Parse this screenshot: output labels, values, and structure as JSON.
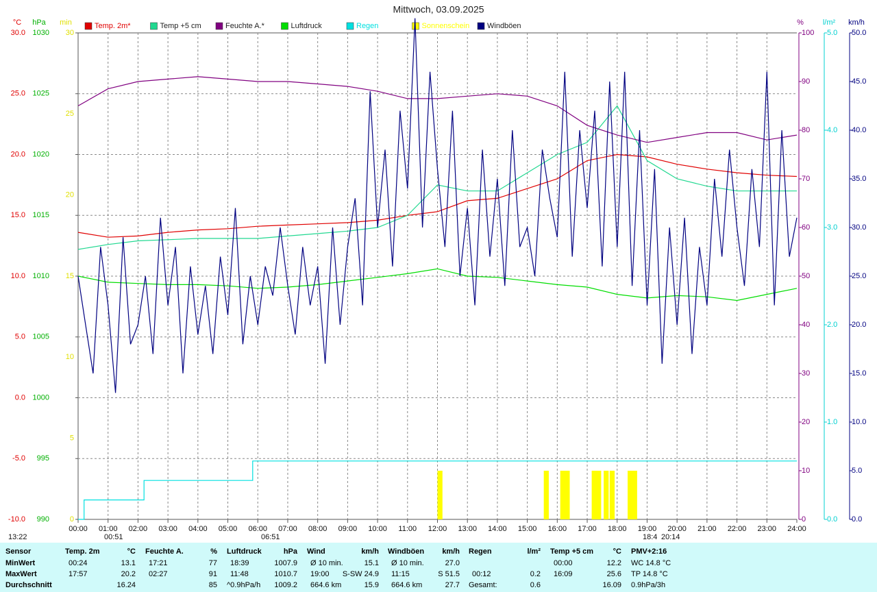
{
  "chart_data": {
    "type": "line",
    "title": "Mittwoch, 03.09.2025",
    "xlim": [
      0,
      24
    ],
    "xticks": [
      {
        "value": 0,
        "label": "00:00"
      },
      {
        "value": 1,
        "label": "01:00"
      },
      {
        "value": 2,
        "label": "02:00"
      },
      {
        "value": 3,
        "label": "03:00"
      },
      {
        "value": 4,
        "label": "04:00"
      },
      {
        "value": 5,
        "label": "05:00"
      },
      {
        "value": 6,
        "label": "06:00"
      },
      {
        "value": 7,
        "label": "07:00"
      },
      {
        "value": 8,
        "label": "08:00"
      },
      {
        "value": 9,
        "label": "09:00"
      },
      {
        "value": 10,
        "label": "10:00"
      },
      {
        "value": 11,
        "label": "11:00"
      },
      {
        "value": 12,
        "label": "12:00"
      },
      {
        "value": 13,
        "label": "13:00"
      },
      {
        "value": 14,
        "label": "14:00"
      },
      {
        "value": 15,
        "label": "15:00"
      },
      {
        "value": 16,
        "label": "16:00"
      },
      {
        "value": 17,
        "label": "17:00"
      },
      {
        "value": 18,
        "label": "18:00"
      },
      {
        "value": 19,
        "label": "19:00"
      },
      {
        "value": 20,
        "label": "20:00"
      },
      {
        "value": 21,
        "label": "21:00"
      },
      {
        "value": 22,
        "label": "22:00"
      },
      {
        "value": 23,
        "label": "23:00"
      },
      {
        "value": 24,
        "label": "24:00"
      }
    ],
    "grid": true,
    "x": [
      0,
      1,
      2,
      3,
      4,
      5,
      6,
      7,
      8,
      9,
      10,
      11,
      12,
      13,
      14,
      15,
      16,
      17,
      18,
      19,
      20,
      21,
      22,
      23,
      24
    ],
    "y_axes": {
      "y": {
        "label": "°C",
        "color": "#e00000",
        "lim": [
          -10,
          30
        ],
        "ticks": [
          {
            "value": 30,
            "label": "30.0"
          },
          {
            "value": 25,
            "label": "25.0"
          },
          {
            "value": 20,
            "label": "20.0"
          },
          {
            "value": 15,
            "label": "15.0"
          },
          {
            "value": 10,
            "label": "10.0"
          },
          {
            "value": 5,
            "label": "5.0"
          },
          {
            "value": 0,
            "label": "0.0"
          },
          {
            "value": -5,
            "label": "-5.0"
          },
          {
            "value": -10,
            "label": "-10.0"
          }
        ]
      },
      "y2": {
        "label": "hPa",
        "color": "#00b000",
        "lim": [
          990,
          1030
        ],
        "ticks": [
          1030,
          1025,
          1020,
          1015,
          1010,
          1005,
          1000,
          995,
          990
        ]
      },
      "y3": {
        "label": "min",
        "color": "#e0e000",
        "lim": [
          0,
          30
        ],
        "ticks": [
          30,
          25,
          20,
          15,
          10,
          5,
          0
        ]
      },
      "y4": {
        "label": "%",
        "color": "#800080",
        "lim": [
          0,
          100
        ],
        "ticks": [
          100,
          90,
          80,
          70,
          60,
          50,
          40,
          30,
          20,
          10,
          0
        ]
      },
      "y5": {
        "label": "l/m²",
        "color": "#00d0d0",
        "lim": [
          0,
          5
        ],
        "ticks": [
          {
            "value": 5,
            "label": "5.0"
          },
          {
            "value": 4,
            "label": "4.0"
          },
          {
            "value": 3,
            "label": "3.0"
          },
          {
            "value": 2,
            "label": "2.0"
          },
          {
            "value": 1,
            "label": "1.0"
          },
          {
            "value": 0,
            "label": "0.0"
          }
        ]
      },
      "y6": {
        "label": "km/h",
        "color": "#000080",
        "lim": [
          0,
          50
        ],
        "ticks": [
          {
            "value": 50,
            "label": "50.0"
          },
          {
            "value": 45,
            "label": "45.0"
          },
          {
            "value": 40,
            "label": "40.0"
          },
          {
            "value": 35,
            "label": "35.0"
          },
          {
            "value": 30,
            "label": "30.0"
          },
          {
            "value": 25,
            "label": "25.0"
          },
          {
            "value": 20,
            "label": "20.0"
          },
          {
            "value": 15,
            "label": "15.0"
          },
          {
            "value": 10,
            "label": "10.0"
          },
          {
            "value": 5,
            "label": "5.0"
          },
          {
            "value": 0,
            "label": "0.0"
          }
        ]
      }
    },
    "series": [
      {
        "name": "Temp. 2m*",
        "color": "#e00000",
        "axis": "y",
        "kind": "line",
        "values": [
          13.6,
          13.2,
          13.3,
          13.6,
          13.8,
          13.9,
          14.1,
          14.2,
          14.3,
          14.4,
          14.6,
          15.0,
          15.3,
          16.2,
          16.4,
          17.2,
          18.0,
          19.5,
          20.0,
          19.8,
          19.2,
          18.8,
          18.5,
          18.3,
          18.2
        ]
      },
      {
        "name": "Temp +5 cm",
        "color": "#20d890",
        "axis": "y",
        "kind": "line",
        "values": [
          12.2,
          12.6,
          12.9,
          13.0,
          13.1,
          13.1,
          13.1,
          13.3,
          13.5,
          13.7,
          14.0,
          15.0,
          17.5,
          17.0,
          17.0,
          18.5,
          20.0,
          21.0,
          24.0,
          19.5,
          18.0,
          17.4,
          17.0,
          17.0,
          17.0
        ]
      },
      {
        "name": "Feuchte A.*",
        "color": "#800080",
        "axis": "y4",
        "kind": "line",
        "values": [
          85,
          88.5,
          90,
          90.5,
          91,
          90.5,
          90,
          90,
          89.5,
          89,
          88,
          86.5,
          86.5,
          87,
          87.5,
          87,
          85,
          81,
          79,
          77.5,
          78.5,
          79.5,
          79.5,
          78,
          79
        ]
      },
      {
        "name": "Luftdruck",
        "color": "#00dd00",
        "axis": "y2",
        "kind": "line",
        "values": [
          1010.0,
          1009.5,
          1009.4,
          1009.3,
          1009.3,
          1009.2,
          1009.0,
          1009.1,
          1009.3,
          1009.6,
          1009.9,
          1010.2,
          1010.6,
          1010.0,
          1009.9,
          1009.6,
          1009.3,
          1009.1,
          1008.5,
          1008.2,
          1008.4,
          1008.3,
          1008.0,
          1008.5,
          1009.0
        ]
      },
      {
        "name": "Regen",
        "color": "#00e0e0",
        "axis": "y5",
        "kind": "line",
        "x": [
          0,
          0.2,
          0.2,
          2.2,
          2.2,
          5.83,
          5.83,
          24
        ],
        "values": [
          0,
          0,
          0.2,
          0.2,
          0.4,
          0.4,
          0.6,
          0.6
        ]
      },
      {
        "name": "Sonnenschein",
        "color": "#ffff00",
        "axis": "y3",
        "kind": "bar",
        "x": [
          12.0,
          15.55,
          16.1,
          16.25,
          17.15,
          17.3,
          17.55,
          17.75,
          18.35,
          18.5
        ],
        "values": [
          3,
          3,
          3,
          3,
          3,
          3,
          3,
          3,
          3,
          3
        ]
      },
      {
        "name": "Windböen",
        "color": "#000080",
        "axis": "y6",
        "kind": "line",
        "x": [
          0,
          0.25,
          0.5,
          0.75,
          1,
          1.25,
          1.5,
          1.75,
          2,
          2.25,
          2.5,
          2.75,
          3,
          3.25,
          3.5,
          3.75,
          4,
          4.25,
          4.5,
          4.75,
          5,
          5.25,
          5.5,
          5.75,
          6,
          6.25,
          6.5,
          6.75,
          7,
          7.25,
          7.5,
          7.75,
          8,
          8.25,
          8.5,
          8.75,
          9,
          9.25,
          9.5,
          9.75,
          10,
          10.25,
          10.5,
          10.75,
          11,
          11.25,
          11.5,
          11.75,
          12,
          12.25,
          12.5,
          12.75,
          13,
          13.25,
          13.5,
          13.75,
          14,
          14.25,
          14.5,
          14.75,
          15,
          15.25,
          15.5,
          15.75,
          16,
          16.25,
          16.5,
          16.75,
          17,
          17.25,
          17.5,
          17.75,
          18,
          18.25,
          18.5,
          18.75,
          19,
          19.25,
          19.5,
          19.75,
          20,
          20.25,
          20.5,
          20.75,
          21,
          21.25,
          21.5,
          21.75,
          22,
          22.25,
          22.5,
          22.75,
          23,
          23.25,
          23.5,
          23.75,
          24
        ],
        "values": [
          25,
          20,
          15,
          28,
          22,
          13,
          29,
          18,
          20,
          25,
          17,
          31,
          22,
          28,
          15,
          26,
          19,
          24,
          17,
          27,
          21,
          32,
          18,
          25,
          20,
          26,
          23,
          30,
          24,
          19,
          28,
          22,
          26,
          16,
          30,
          20,
          28,
          33,
          22,
          44,
          30,
          38,
          26,
          42,
          34,
          51.5,
          30,
          46,
          36,
          28,
          42,
          25,
          32,
          22,
          38,
          27,
          35,
          24,
          40,
          28,
          30,
          25,
          38,
          33,
          29,
          46,
          27,
          40,
          32,
          42,
          26,
          45,
          28,
          46,
          24,
          40,
          22,
          36,
          16,
          30,
          20,
          31,
          17,
          28,
          22,
          35,
          27,
          38,
          30,
          24,
          36,
          28,
          46,
          22,
          40,
          27,
          31
        ]
      }
    ],
    "annotations": [
      "13:22",
      "00:51",
      "06:51",
      "18:4",
      "20:14"
    ]
  },
  "table": {
    "header": [
      "Sensor",
      "Temp. 2m",
      "°C",
      "Feuchte A.",
      "%",
      "Luftdruck",
      "hPa",
      "Wind",
      "km/h",
      "Windböen",
      "km/h",
      "Regen",
      "l/m²",
      "Temp +5 cm",
      "°C",
      "PMV+2:16"
    ],
    "rows": [
      {
        "label": "MinWert",
        "cells": [
          "00:24",
          "13.1",
          "17:21",
          "77",
          "18:39",
          "1007.9",
          "Ø 10 min.",
          "15.1",
          "Ø 10 min.",
          "27.0",
          "00:00",
          "12.2",
          "WC 14.8 °C"
        ]
      },
      {
        "label": "MaxWert",
        "cells": [
          "17:57",
          "20.2",
          "02:27",
          "91",
          "11:48",
          "1010.7",
          "19:00",
          "S-SW 24.9",
          "11:15",
          "S 51.5",
          "00:12",
          "0.2",
          "16:09",
          "25.6",
          "TP 14.8 °C"
        ]
      },
      {
        "label": "Durchschnitt",
        "cells": [
          "16.24",
          "85",
          "^0.9hPa/h",
          "1009.2",
          "664.6 km",
          "15.9",
          "664.6 km",
          "27.7",
          "Gesamt:",
          "0.6",
          "16.09",
          "0.9hPa/3h"
        ]
      }
    ]
  }
}
